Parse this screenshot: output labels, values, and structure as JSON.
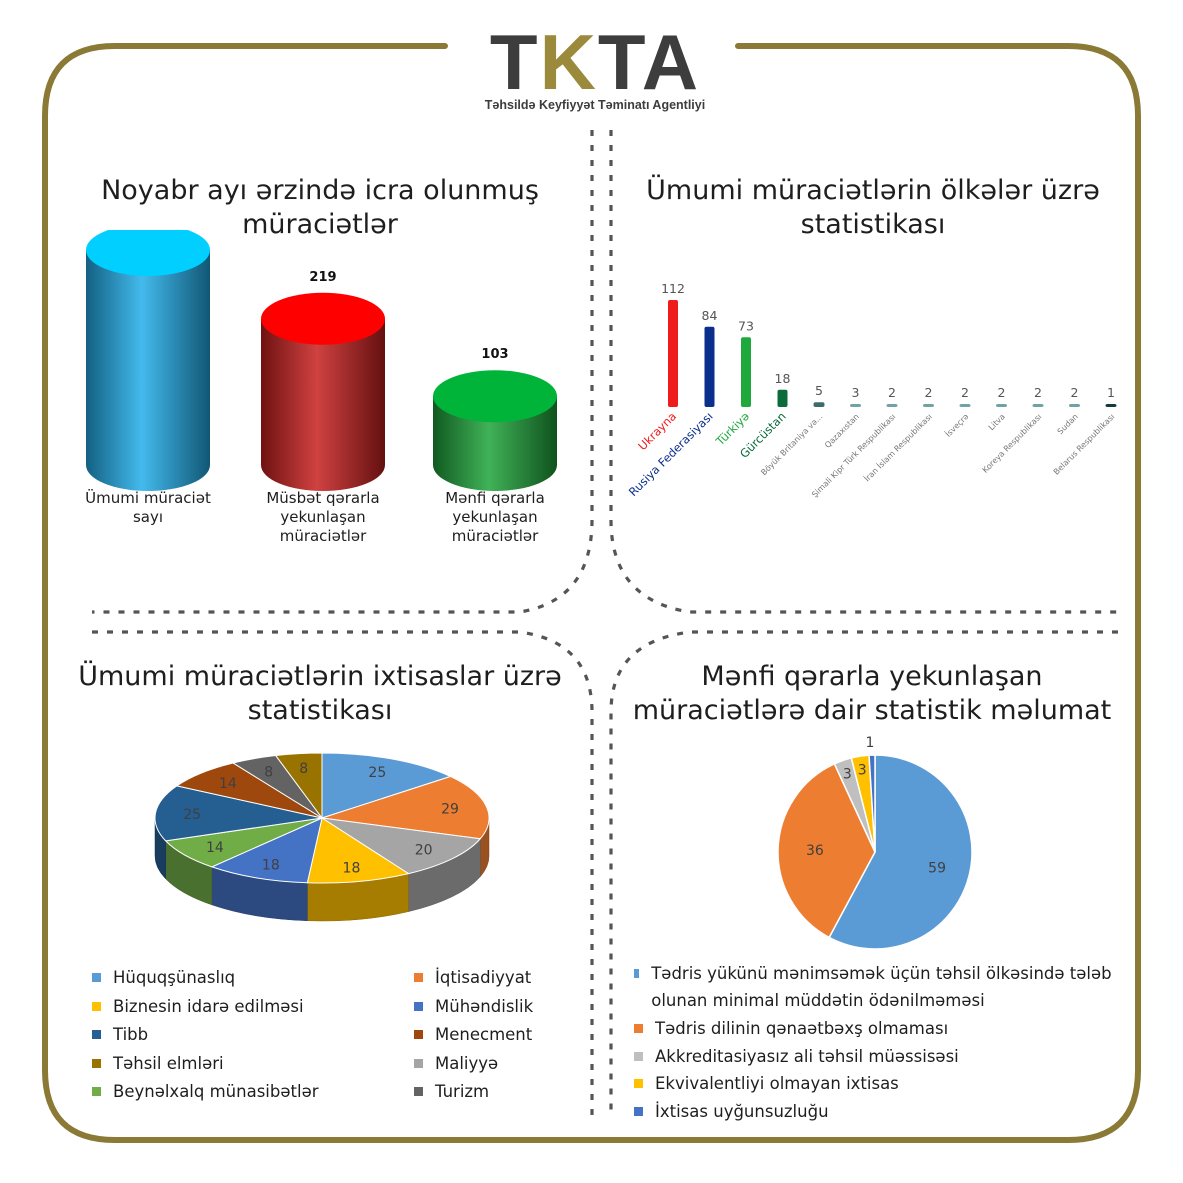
{
  "logo": {
    "mark_left": "TK",
    "mark_right": "TA",
    "mark_gold": "K",
    "subtitle": "Təhsildə Keyfiyyət Təminatı Agentliyi"
  },
  "colors": {
    "frame": "#8a7a35",
    "dots": "#555555"
  },
  "panels": {
    "top_left_title": "Noyabr ayı ərzində icra olunmuş müraciətlər",
    "top_right_title": "Ümumi müraciətlərin ölkələr üzrə statistikası",
    "bottom_left_title": "Ümumi müraciətlərin ixtisaslar üzrə statistikası",
    "bottom_right_title": "Mənfi qərarla yekunlaşan müraciətlərə dair statistik məlumat"
  },
  "chart_data": [
    {
      "type": "bar",
      "style": "3d-cylinder",
      "categories": [
        "Ümumi müraciət sayı",
        "Müsbət qərarla yekunlaşan müraciətlər",
        "Mənfi qərarla yekunlaşan müraciətlər"
      ],
      "values": [
        322,
        219,
        103
      ],
      "colors": [
        "#22aeea",
        "#c8201f",
        "#1ea43a"
      ],
      "top_colors": [
        "#00cfff",
        "#ff0000",
        "#00b43a"
      ],
      "grid": false
    },
    {
      "type": "bar",
      "categories": [
        "Ukrayna",
        "Rusiya Federasiyası",
        "Türkiyə",
        "Gürcüstan",
        "Böyük Britaniya və...",
        "Qazaxıstan",
        "Şimali Kipr Türk Respublikası",
        "İran İslam Respublikası",
        "İsveçrə",
        "Litva",
        "Koreya Respublikası",
        "Sudan",
        "Belarus Respublikası"
      ],
      "values": [
        112,
        84,
        73,
        18,
        5,
        3,
        2,
        2,
        2,
        2,
        2,
        2,
        1
      ],
      "colors": [
        "#ee1c1c",
        "#0a2f8c",
        "#1fa83c",
        "#0b6b3a",
        "#3d6b6b",
        "#6fa3a3",
        "#6fa3a3",
        "#6fa3a3",
        "#6fa3a3",
        "#6fa3a3",
        "#6fa3a3",
        "#6fa3a3",
        "#123b3b"
      ],
      "grid": false
    },
    {
      "type": "pie",
      "style": "3d",
      "labels": [
        "Hüquqşünaslıq",
        "İqtisadiyyat",
        "Maliyyə",
        "Biznesin idarə edilməsi",
        "Mühəndislik",
        "Beynəlxalq münasibətlər",
        "Tibb",
        "Menecment",
        "Turizm",
        "Təhsil elmləri"
      ],
      "values": [
        25,
        29,
        20,
        18,
        18,
        14,
        25,
        14,
        8,
        8
      ],
      "colors": [
        "#5b9bd5",
        "#ed7d31",
        "#a5a5a5",
        "#ffc000",
        "#4472c4",
        "#70ad47",
        "#255e91",
        "#9e480e",
        "#636363",
        "#997300"
      ],
      "legend": [
        {
          "label": "Hüquqşünaslıq",
          "color": "#5b9bd5"
        },
        {
          "label": "İqtisadiyyat",
          "color": "#ed7d31"
        },
        {
          "label": "Biznesin idarə edilməsi",
          "color": "#ffc000"
        },
        {
          "label": "Mühəndislik",
          "color": "#4472c4"
        },
        {
          "label": "Tibb",
          "color": "#255e91"
        },
        {
          "label": "Menecment",
          "color": "#9e480e"
        },
        {
          "label": "Təhsil elmləri",
          "color": "#997300"
        },
        {
          "label": "Maliyyə",
          "color": "#a5a5a5"
        },
        {
          "label": "Beynəlxalq münasibətlər",
          "color": "#70ad47"
        },
        {
          "label": "Turizm",
          "color": "#636363"
        }
      ],
      "legend_position": "bottom"
    },
    {
      "type": "pie",
      "labels": [
        "Tədris yükünü mənimsəmək üçün təhsil ölkəsində tələb olunan minimal müddətin ödənilməməsi",
        "Tədris dilinin qənaətbəxş olmaması",
        "Akkreditasiyasız ali təhsil müəssisəsi",
        "Ekvivalentliyi olmayan ixtisas",
        "İxtisas uyğunsuzluğu"
      ],
      "values": [
        59,
        36,
        3,
        3,
        1
      ],
      "colors": [
        "#5b9bd5",
        "#ed7d31",
        "#bfbfbf",
        "#ffc000",
        "#4472c4"
      ],
      "legend_position": "bottom"
    }
  ]
}
